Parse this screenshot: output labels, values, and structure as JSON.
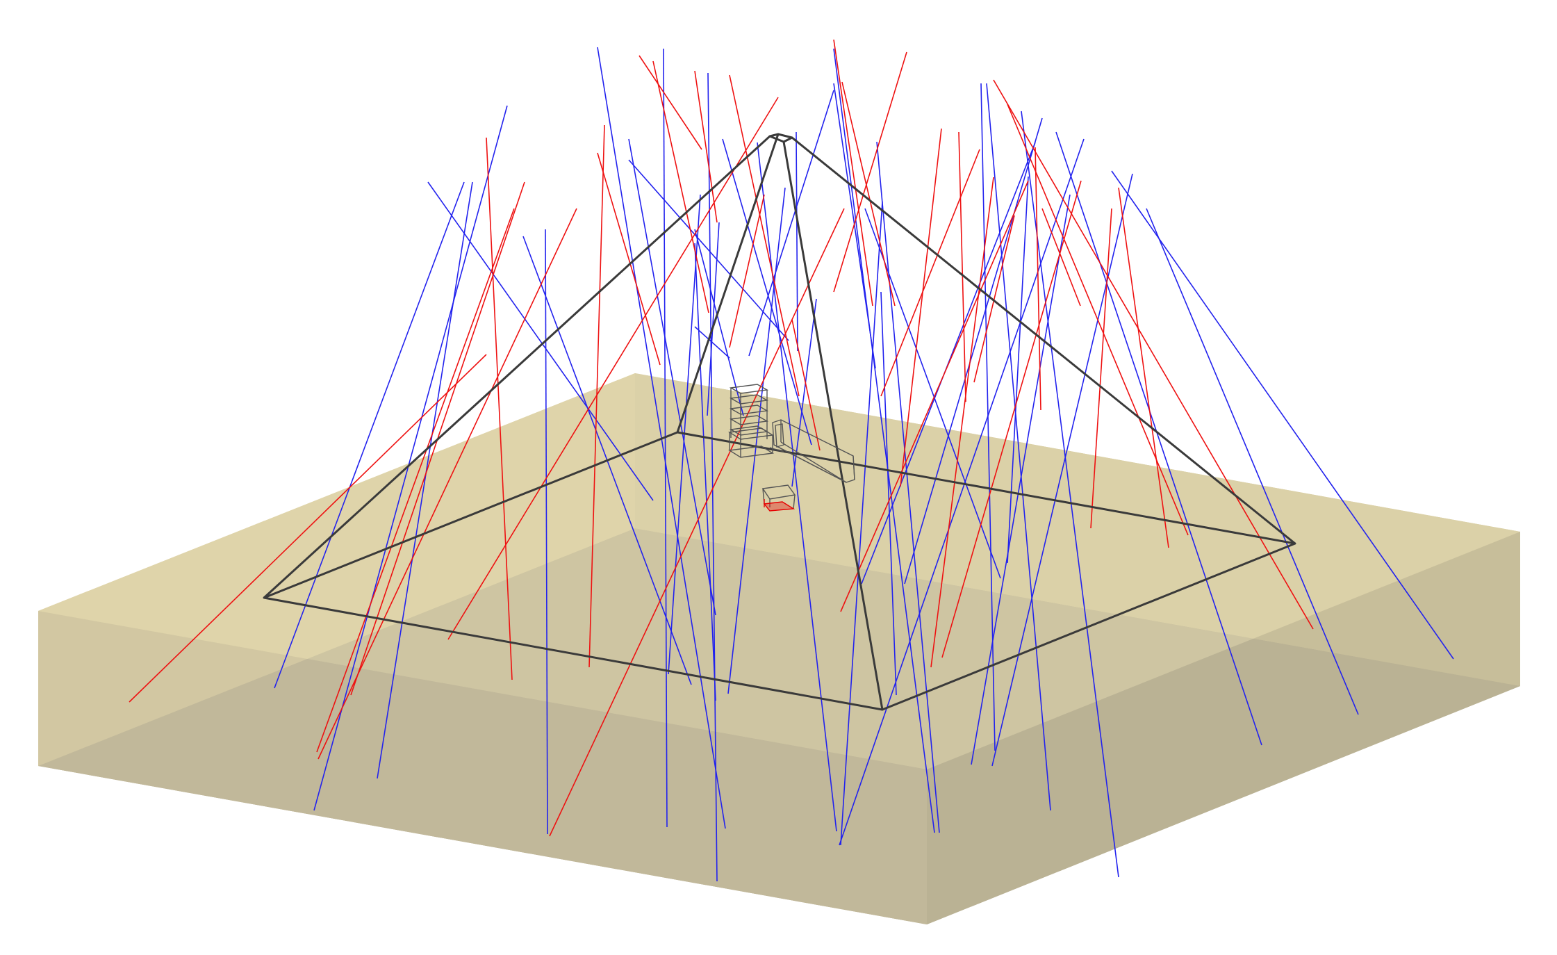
{
  "diagram": {
    "colors": {
      "background": "#ffffff",
      "slab_top": "#e8dcae",
      "slab_front": "#cfc6a0",
      "slab_side": "#c4bb98",
      "slab_inner_top": "#d2c8a2",
      "slab_inner_front": "#b0a993",
      "slab_inner_side": "#a9a38f",
      "pyramid_edge": "#3a3a3a",
      "chamber_edge": "#555555",
      "chamber_red": "#e60000",
      "track_blue": "#2222ee",
      "track_red": "#ee1111"
    }
  }
}
